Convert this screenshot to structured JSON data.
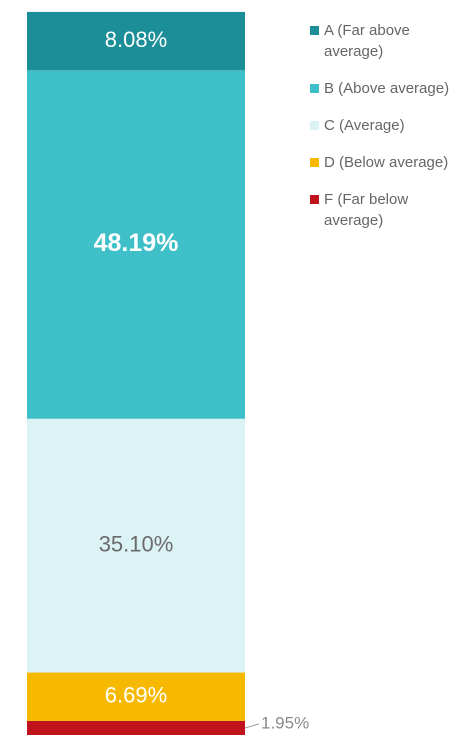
{
  "chart_data": {
    "type": "stacked-bar",
    "series": [
      {
        "name": "A (Far above average)",
        "color": "#1b8e97",
        "values": [
          8.08
        ],
        "value_labels": [
          "8.08%"
        ]
      },
      {
        "name": "B (Above average)",
        "color": "#3fc0c8",
        "values": [
          48.19
        ],
        "value_labels": [
          "48.19%"
        ]
      },
      {
        "name": "C (Average)",
        "color": "#dbf3f4",
        "values": [
          35.1
        ],
        "value_labels": [
          "35.10%"
        ]
      },
      {
        "name": "D (Below average)",
        "color": "#f7b900",
        "values": [
          6.69
        ],
        "value_labels": [
          "6.69%"
        ]
      },
      {
        "name": "F (Far below average)",
        "color": "#c0141c",
        "values": [
          1.95
        ],
        "value_labels": [
          "1.95%"
        ]
      }
    ],
    "ylim": [
      0,
      100
    ]
  }
}
